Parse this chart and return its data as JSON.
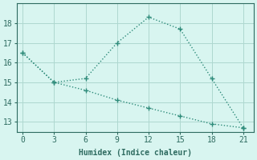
{
  "line1_x": [
    0,
    3,
    6,
    9,
    12,
    15,
    18,
    21
  ],
  "line1_y": [
    16.5,
    15.0,
    15.2,
    17.0,
    18.3,
    17.7,
    15.2,
    12.7
  ],
  "line2_x": [
    0,
    3,
    6,
    9,
    12,
    15,
    18,
    21
  ],
  "line2_y": [
    16.5,
    15.0,
    14.6,
    14.1,
    13.7,
    13.3,
    12.9,
    12.7
  ],
  "line_color": "#2e8b7a",
  "marker": "+",
  "xlabel": "Humidex (Indice chaleur)",
  "xlim": [
    -0.5,
    22
  ],
  "ylim": [
    12.5,
    19.0
  ],
  "xticks": [
    0,
    3,
    6,
    9,
    12,
    15,
    18,
    21
  ],
  "yticks": [
    13,
    14,
    15,
    16,
    17,
    18
  ],
  "bg_color": "#d8f5f0",
  "grid_color": "#aed8d0",
  "font_color": "#2e6b60",
  "font_size": 7,
  "marker_size": 4,
  "line_width": 1.0
}
